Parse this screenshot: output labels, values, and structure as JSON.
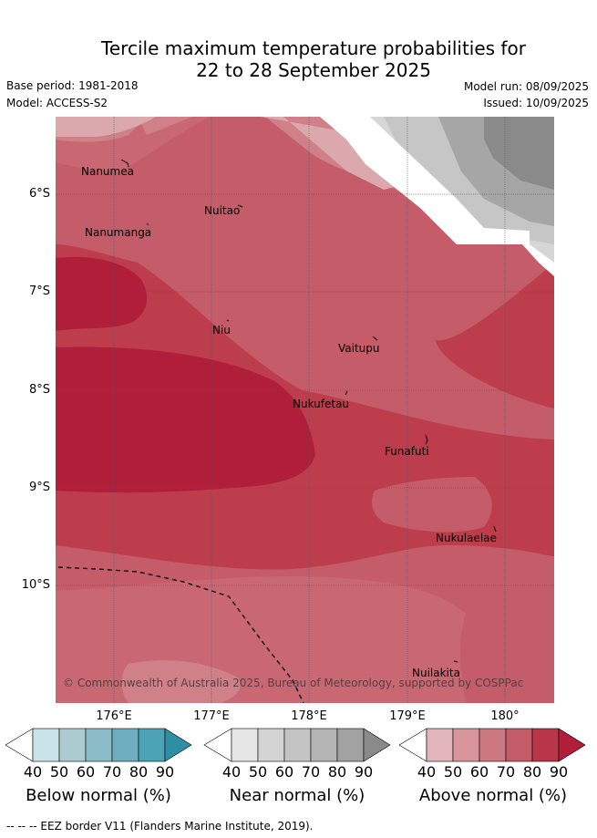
{
  "title": {
    "line1": "Tercile maximum temperature probabilities for",
    "line2": "22 to 28 September 2025"
  },
  "meta": {
    "base_period": "Base period: 1981-2018",
    "model": "Model: ACCESS-S2",
    "model_run": "Model run: 08/09/2025",
    "issued": "Issued: 10/09/2025"
  },
  "map": {
    "lat_labels": [
      "6°S",
      "7°S",
      "8°S",
      "9°S",
      "10°S"
    ],
    "lon_labels": [
      "176°E",
      "177°E",
      "178°E",
      "179°E",
      "180°"
    ],
    "places": [
      "Nanumea",
      "Nanumanga",
      "Nuitao",
      "Niu",
      "Vaitupu",
      "Nukufetau",
      "Funafuti",
      "Nukulaelae",
      "Nuilakita"
    ],
    "copyright": "© Commonwealth of Australia 2025, Bureau of Meteorology, supported by COSPPac",
    "eez_style": "dashed black line",
    "fill_colors": {
      "above_50": "#dba8ad",
      "above_60": "#d08088",
      "above_70": "#c96872",
      "above_80": "#bd3d4c",
      "above_90": "#b01e3a",
      "near_50": "#d6d6d6",
      "near_60": "#c6c6c6",
      "near_70": "#a6a6a6",
      "near_80": "#8a8a8a"
    }
  },
  "colorbars": [
    {
      "title": "Below normal (%)",
      "ticks": [
        "40",
        "50",
        "60",
        "70",
        "80",
        "90"
      ],
      "colors": [
        "#ffffff",
        "#cae3e8",
        "#abcbd0",
        "#8bbcc8",
        "#6dadbd",
        "#4ba3b5",
        "#2e8fa4"
      ]
    },
    {
      "title": "Near normal (%)",
      "ticks": [
        "40",
        "50",
        "60",
        "70",
        "80",
        "90"
      ],
      "colors": [
        "#ffffff",
        "#e6e6e6",
        "#d4d4d4",
        "#c4c4c4",
        "#b4b4b4",
        "#a2a2a2",
        "#8a8a8a"
      ]
    },
    {
      "title": "Above normal (%)",
      "ticks": [
        "40",
        "50",
        "60",
        "70",
        "80",
        "90"
      ],
      "colors": [
        "#ffffff",
        "#e2b5bb",
        "#d8959c",
        "#cd7880",
        "#c45c69",
        "#b93549",
        "#b01e3a"
      ]
    }
  ],
  "footnote": "-- -- -- EEZ border V11 (Flanders Marine Institute, 2019)."
}
